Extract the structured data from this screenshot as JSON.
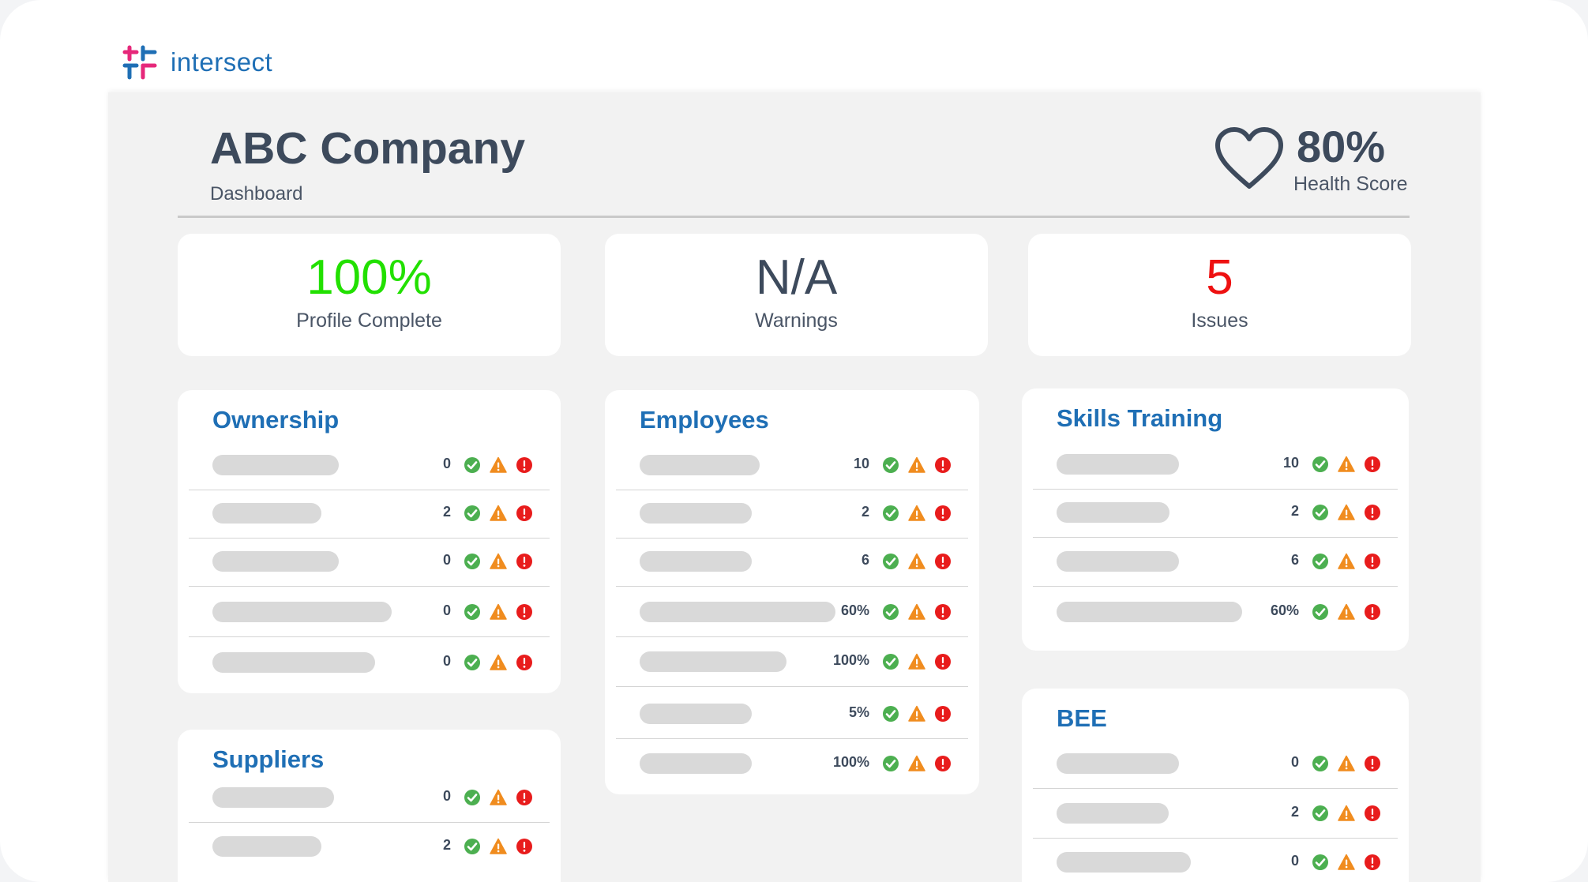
{
  "brand": {
    "name": "intersect"
  },
  "header": {
    "company": "ABC Company",
    "subtitle": "Dashboard",
    "health_value": "80%",
    "health_label": "Health Score"
  },
  "stats": [
    {
      "value": "100%",
      "label": "Profile Complete",
      "color": "#22e000"
    },
    {
      "value": "N/A",
      "label": "Warnings",
      "color": "#3d4a5c"
    },
    {
      "value": "5",
      "label": "Issues",
      "color": "#ee1111"
    }
  ],
  "status_colors": {
    "ok": "#4caf50",
    "warning": "#f08c1f",
    "error": "#e81c1c"
  },
  "cards": {
    "ownership": {
      "title": "Ownership",
      "rows": [
        "0",
        "2",
        "0",
        "0",
        "0"
      ]
    },
    "suppliers": {
      "title": "Suppliers",
      "rows": [
        "0",
        "2"
      ]
    },
    "employees": {
      "title": "Employees",
      "rows": [
        "10",
        "2",
        "6",
        "60%",
        "100%",
        "5%",
        "100%"
      ]
    },
    "skills": {
      "title": "Skills Training",
      "rows": [
        "10",
        "2",
        "6",
        "60%"
      ]
    },
    "bee": {
      "title": "BEE",
      "rows": [
        "0",
        "2",
        "0"
      ]
    }
  }
}
